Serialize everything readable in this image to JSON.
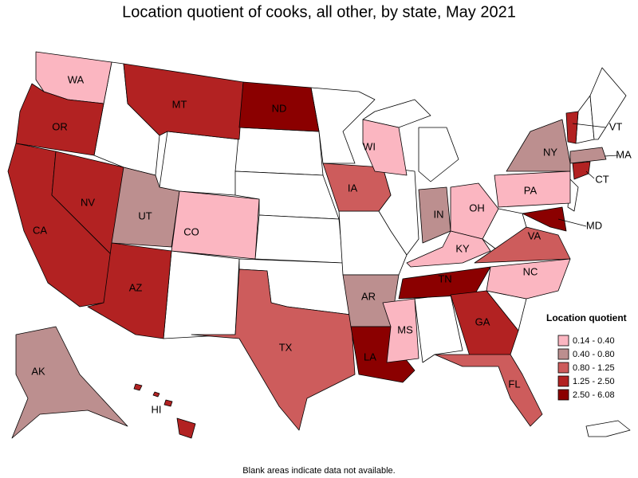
{
  "title": "Location quotient of cooks, all other, by state, May 2021",
  "note": "Blank areas indicate data not available.",
  "legend": {
    "title": "Location quotient",
    "items": [
      {
        "label": "0.14 - 0.40",
        "color": "#fbb6c1"
      },
      {
        "label": "0.40 - 0.80",
        "color": "#bc8f8f"
      },
      {
        "label": "0.80 - 1.25",
        "color": "#cd5c5c"
      },
      {
        "label": "1.25 - 2.50",
        "color": "#b22222"
      },
      {
        "label": "2.50 - 6.08",
        "color": "#8b0000"
      }
    ]
  },
  "states": [
    {
      "abbr": "WA",
      "class": 0
    },
    {
      "abbr": "OR",
      "class": 3
    },
    {
      "abbr": "CA",
      "class": 3
    },
    {
      "abbr": "NV",
      "class": 3
    },
    {
      "abbr": "MT",
      "class": 3
    },
    {
      "abbr": "ND",
      "class": 4
    },
    {
      "abbr": "UT",
      "class": 1
    },
    {
      "abbr": "CO",
      "class": 0
    },
    {
      "abbr": "AZ",
      "class": 3
    },
    {
      "abbr": "TX",
      "class": 2
    },
    {
      "abbr": "AK",
      "class": 1
    },
    {
      "abbr": "HI",
      "class": 3
    },
    {
      "abbr": "IA",
      "class": 2
    },
    {
      "abbr": "WI",
      "class": 0
    },
    {
      "abbr": "IN",
      "class": 1
    },
    {
      "abbr": "OH",
      "class": 0
    },
    {
      "abbr": "KY",
      "class": 0
    },
    {
      "abbr": "TN",
      "class": 4
    },
    {
      "abbr": "AR",
      "class": 1
    },
    {
      "abbr": "LA",
      "class": 4
    },
    {
      "abbr": "MS",
      "class": 0
    },
    {
      "abbr": "GA",
      "class": 3
    },
    {
      "abbr": "FL",
      "class": 2
    },
    {
      "abbr": "VA",
      "class": 2
    },
    {
      "abbr": "NC",
      "class": 0
    },
    {
      "abbr": "PA",
      "class": 0
    },
    {
      "abbr": "NY",
      "class": 1
    },
    {
      "abbr": "MA",
      "class": 1
    },
    {
      "abbr": "CT",
      "class": 3
    },
    {
      "abbr": "VT",
      "class": 3
    },
    {
      "abbr": "MD",
      "class": 4
    }
  ]
}
